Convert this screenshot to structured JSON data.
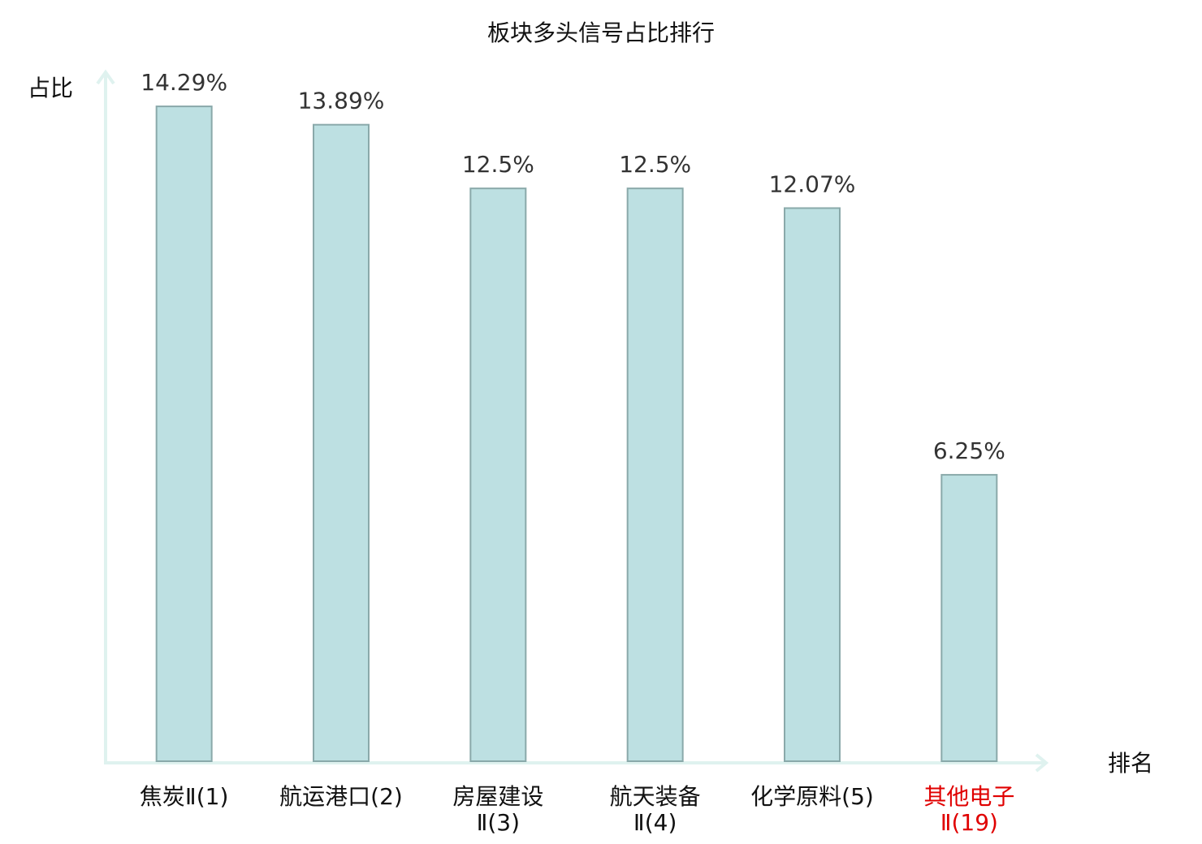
{
  "chart_data": {
    "type": "bar",
    "title": "板块多头信号占比排行",
    "y_label": "占比",
    "x_label": "排名",
    "categories": [
      "焦炭Ⅱ(1)",
      "航运港口(2)",
      "房屋建设Ⅱ(3)",
      "航天装备Ⅱ(4)",
      "化学原料(5)",
      "其他电子Ⅱ(19)"
    ],
    "category_colors": [
      "#111111",
      "#111111",
      "#111111",
      "#111111",
      "#111111",
      "#e00000"
    ],
    "values": [
      14.29,
      13.89,
      12.5,
      12.5,
      12.07,
      6.25
    ],
    "value_labels": [
      "14.29%",
      "13.89%",
      "12.5%",
      "12.5%",
      "12.07%",
      "6.25%"
    ],
    "color": "#bde0e2",
    "edge_color": "#8aa9aa",
    "axis_color": "#dff2ef",
    "ylim": [
      0,
      15
    ],
    "grid": false
  }
}
